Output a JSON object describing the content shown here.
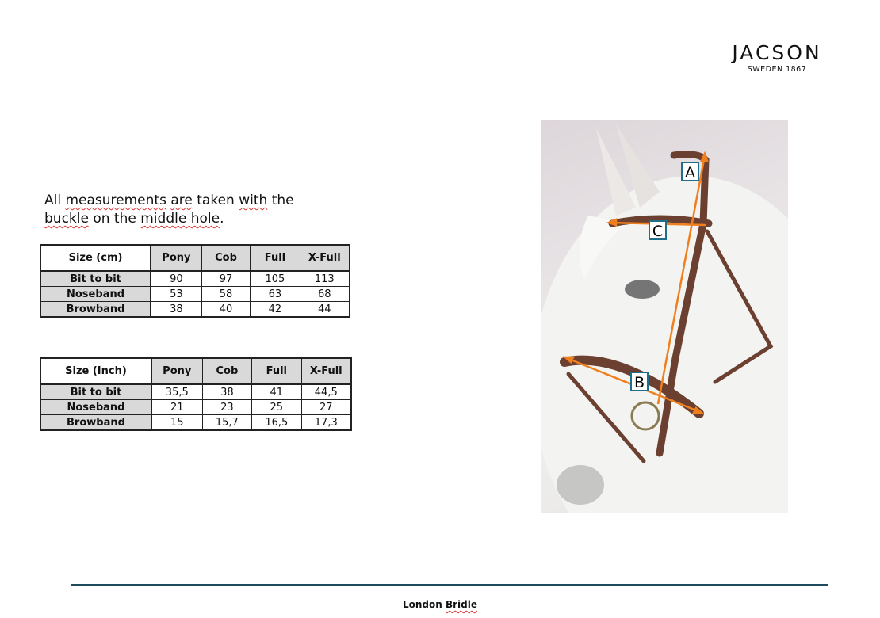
{
  "brand": {
    "name": "JACSON",
    "tagline": "SWEDEN 1867"
  },
  "intro": {
    "segments": [
      {
        "t": "All ",
        "sq": false
      },
      {
        "t": "measurements",
        "sq": true
      },
      {
        "t": " ",
        "sq": false
      },
      {
        "t": "are",
        "sq": true
      },
      {
        "t": " taken ",
        "sq": false
      },
      {
        "t": "with",
        "sq": true
      },
      {
        "t": " the",
        "sq": false
      },
      {
        "br": true
      },
      {
        "t": "buckle",
        "sq": true
      },
      {
        "t": " on the ",
        "sq": false
      },
      {
        "t": "middle hole",
        "sq": true
      },
      {
        "t": ".",
        "sq": false
      }
    ]
  },
  "tables": [
    {
      "header": [
        "Size (cm)",
        "Pony",
        "Cob",
        "Full",
        "X-Full"
      ],
      "rows": [
        [
          "Bit to bit",
          "90",
          "97",
          "105",
          "113"
        ],
        [
          "Noseband",
          "53",
          "58",
          "63",
          "68"
        ],
        [
          "Browband",
          "38",
          "40",
          "42",
          "44"
        ]
      ]
    },
    {
      "header": [
        "Size (Inch)",
        "Pony",
        "Cob",
        "Full",
        "X-Full"
      ],
      "rows": [
        [
          "Bit to bit",
          "35,5",
          "38",
          "41",
          "44,5"
        ],
        [
          "Noseband",
          "21",
          "23",
          "25",
          "27"
        ],
        [
          "Browband",
          "15",
          "15,7",
          "16,5",
          "17,3"
        ]
      ]
    }
  ],
  "photo": {
    "labels": [
      "A",
      "B",
      "C"
    ],
    "accent": "#f07f1e",
    "label_border": "#1f6e8c"
  },
  "footer": {
    "prefix": "London ",
    "word": "Bridle"
  }
}
